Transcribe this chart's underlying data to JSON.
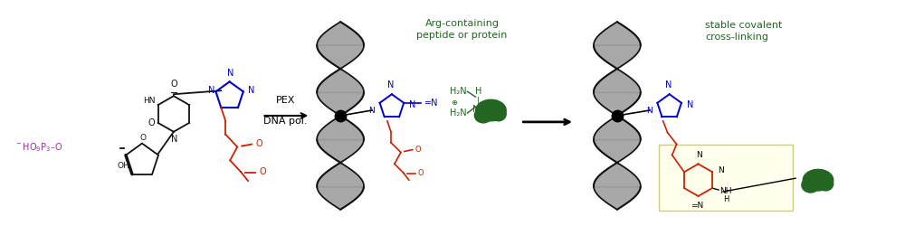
{
  "bg_color": "#ffffff",
  "arrow_color": "#333333",
  "pex_text": "PEX\nDNA pol.",
  "arg_label": "Arg-containing\npeptide or protein",
  "stable_label": "stable covalent\ncross-linking",
  "triazole_color": "#0000cc",
  "red_chain_color": "#cc2200",
  "purple_color": "#993399",
  "green_color": "#226622",
  "black_color": "#111111",
  "gray_color": "#aaaaaa",
  "yellow_bg": "#ffffee",
  "figure_width": 10.0,
  "figure_height": 2.5,
  "dpi": 100
}
